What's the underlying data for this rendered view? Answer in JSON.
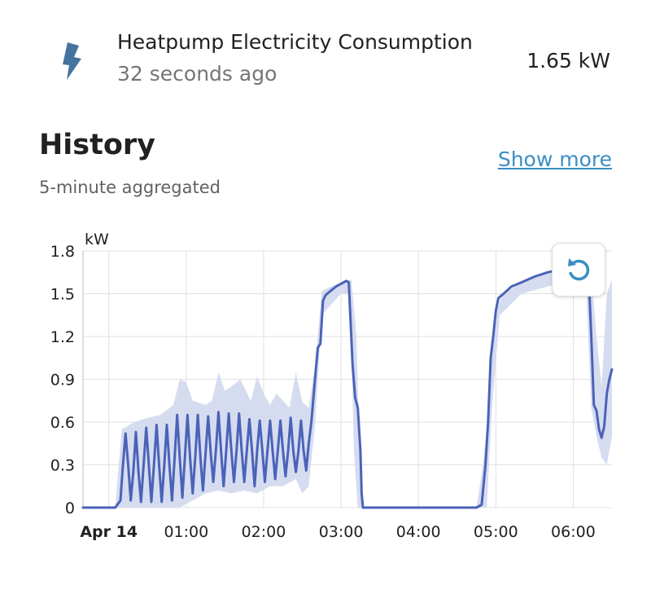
{
  "entity": {
    "name": "Heatpump Electricity Consumption",
    "updated": "32 seconds ago",
    "value": "1.65 kW",
    "icon": "lightning-bolt-icon",
    "icon_color": "#44739e"
  },
  "history": {
    "title": "History",
    "show_more": "Show more",
    "subtitle": "5-minute aggregated",
    "reset_icon": "reset-zoom-icon"
  },
  "colors": {
    "line": "#4a63b8",
    "band": "#d6dcf0",
    "accent": "#3b8fc4",
    "grid": "#e0e0e0"
  },
  "chart_data": {
    "type": "line",
    "unit_label": "kW",
    "ylim": [
      0,
      1.8
    ],
    "yticks": [
      0,
      0.3,
      0.6,
      0.9,
      1.2,
      1.5,
      1.8
    ],
    "xlim": [
      "23:40",
      "06:30"
    ],
    "xticks": [
      {
        "time": "00:00",
        "label": "Apr 14",
        "bold": true
      },
      {
        "time": "01:00",
        "label": "01:00",
        "bold": false
      },
      {
        "time": "02:00",
        "label": "02:00",
        "bold": false
      },
      {
        "time": "03:00",
        "label": "03:00",
        "bold": false
      },
      {
        "time": "04:00",
        "label": "04:00",
        "bold": false
      },
      {
        "time": "05:00",
        "label": "05:00",
        "bold": false
      },
      {
        "time": "06:00",
        "label": "06:00",
        "bold": false
      }
    ],
    "grid": true,
    "series": [
      {
        "points": [
          [
            "23:40",
            0
          ],
          [
            "00:05",
            0
          ],
          [
            "00:09",
            0.05
          ],
          [
            "00:11",
            0.3
          ],
          [
            "00:13",
            0.52
          ],
          [
            "00:15",
            0.3
          ],
          [
            "00:17",
            0.05
          ],
          [
            "00:19",
            0.25
          ],
          [
            "00:21",
            0.53
          ],
          [
            "00:23",
            0.25
          ],
          [
            "00:25",
            0.04
          ],
          [
            "00:27",
            0.3
          ],
          [
            "00:29",
            0.56
          ],
          [
            "00:31",
            0.3
          ],
          [
            "00:33",
            0.04
          ],
          [
            "00:35",
            0.3
          ],
          [
            "00:37",
            0.58
          ],
          [
            "00:39",
            0.3
          ],
          [
            "00:41",
            0.04
          ],
          [
            "00:43",
            0.3
          ],
          [
            "00:45",
            0.58
          ],
          [
            "00:47",
            0.3
          ],
          [
            "00:49",
            0.05
          ],
          [
            "00:51",
            0.35
          ],
          [
            "00:53",
            0.65
          ],
          [
            "00:55",
            0.35
          ],
          [
            "00:57",
            0.07
          ],
          [
            "00:59",
            0.35
          ],
          [
            "01:01",
            0.65
          ],
          [
            "01:03",
            0.35
          ],
          [
            "01:05",
            0.1
          ],
          [
            "01:07",
            0.35
          ],
          [
            "01:09",
            0.65
          ],
          [
            "01:11",
            0.35
          ],
          [
            "01:13",
            0.12
          ],
          [
            "01:15",
            0.38
          ],
          [
            "01:17",
            0.64
          ],
          [
            "01:19",
            0.38
          ],
          [
            "01:21",
            0.18
          ],
          [
            "01:23",
            0.4
          ],
          [
            "01:25",
            0.67
          ],
          [
            "01:27",
            0.4
          ],
          [
            "01:29",
            0.15
          ],
          [
            "01:31",
            0.4
          ],
          [
            "01:33",
            0.66
          ],
          [
            "01:35",
            0.4
          ],
          [
            "01:37",
            0.18
          ],
          [
            "01:39",
            0.4
          ],
          [
            "01:41",
            0.66
          ],
          [
            "01:43",
            0.4
          ],
          [
            "01:45",
            0.18
          ],
          [
            "01:47",
            0.4
          ],
          [
            "01:49",
            0.62
          ],
          [
            "01:51",
            0.4
          ],
          [
            "01:53",
            0.15
          ],
          [
            "01:55",
            0.4
          ],
          [
            "01:57",
            0.61
          ],
          [
            "01:59",
            0.4
          ],
          [
            "02:01",
            0.18
          ],
          [
            "02:03",
            0.4
          ],
          [
            "02:05",
            0.61
          ],
          [
            "02:07",
            0.4
          ],
          [
            "02:09",
            0.2
          ],
          [
            "02:11",
            0.4
          ],
          [
            "02:13",
            0.61
          ],
          [
            "02:15",
            0.4
          ],
          [
            "02:17",
            0.22
          ],
          [
            "02:19",
            0.4
          ],
          [
            "02:21",
            0.63
          ],
          [
            "02:23",
            0.4
          ],
          [
            "02:25",
            0.25
          ],
          [
            "02:27",
            0.4
          ],
          [
            "02:29",
            0.61
          ],
          [
            "02:31",
            0.4
          ],
          [
            "02:33",
            0.26
          ],
          [
            "02:35",
            0.45
          ],
          [
            "02:37",
            0.6
          ],
          [
            "02:40",
            0.92
          ],
          [
            "02:42",
            1.12
          ],
          [
            "02:44",
            1.15
          ],
          [
            "02:46",
            1.45
          ],
          [
            "02:48",
            1.49
          ],
          [
            "02:52",
            1.52
          ],
          [
            "02:56",
            1.55
          ],
          [
            "03:00",
            1.57
          ],
          [
            "03:04",
            1.59
          ],
          [
            "03:06",
            1.58
          ],
          [
            "03:09",
            1.0
          ],
          [
            "03:11",
            0.77
          ],
          [
            "03:13",
            0.7
          ],
          [
            "03:15",
            0.4
          ],
          [
            "03:16",
            0.1
          ],
          [
            "03:17",
            0
          ],
          [
            "04:45",
            0
          ],
          [
            "04:49",
            0.02
          ],
          [
            "04:52",
            0.3
          ],
          [
            "04:54",
            0.6
          ],
          [
            "04:56",
            1.05
          ],
          [
            "04:58",
            1.2
          ],
          [
            "05:00",
            1.38
          ],
          [
            "05:02",
            1.47
          ],
          [
            "05:06",
            1.5
          ],
          [
            "05:12",
            1.55
          ],
          [
            "05:20",
            1.58
          ],
          [
            "05:30",
            1.62
          ],
          [
            "05:40",
            1.65
          ],
          [
            "05:50",
            1.67
          ],
          [
            "06:00",
            1.68
          ],
          [
            "06:08",
            1.69
          ],
          [
            "06:12",
            1.62
          ],
          [
            "06:14",
            1.2
          ],
          [
            "06:16",
            0.72
          ],
          [
            "06:18",
            0.68
          ],
          [
            "06:20",
            0.55
          ],
          [
            "06:22",
            0.49
          ],
          [
            "06:24",
            0.57
          ],
          [
            "06:26",
            0.8
          ],
          [
            "06:28",
            0.9
          ],
          [
            "06:30",
            0.97
          ]
        ],
        "band_upper": [
          [
            "23:40",
            0
          ],
          [
            "00:05",
            0
          ],
          [
            "00:10",
            0.55
          ],
          [
            "00:20",
            0.6
          ],
          [
            "00:30",
            0.63
          ],
          [
            "00:40",
            0.65
          ],
          [
            "00:50",
            0.72
          ],
          [
            "00:55",
            0.9
          ],
          [
            "01:00",
            0.88
          ],
          [
            "01:05",
            0.75
          ],
          [
            "01:15",
            0.72
          ],
          [
            "01:20",
            0.75
          ],
          [
            "01:25",
            0.95
          ],
          [
            "01:30",
            0.82
          ],
          [
            "01:35",
            0.85
          ],
          [
            "01:42",
            0.9
          ],
          [
            "01:50",
            0.75
          ],
          [
            "01:55",
            0.92
          ],
          [
            "02:00",
            0.8
          ],
          [
            "02:05",
            0.72
          ],
          [
            "02:10",
            0.8
          ],
          [
            "02:15",
            0.75
          ],
          [
            "02:20",
            0.7
          ],
          [
            "02:25",
            0.95
          ],
          [
            "02:30",
            0.74
          ],
          [
            "02:35",
            0.7
          ],
          [
            "02:40",
            1.0
          ],
          [
            "02:45",
            1.52
          ],
          [
            "03:00",
            1.58
          ],
          [
            "03:08",
            1.6
          ],
          [
            "03:12",
            1.2
          ],
          [
            "03:14",
            0.5
          ],
          [
            "03:16",
            0
          ],
          [
            "04:45",
            0
          ],
          [
            "04:50",
            0.3
          ],
          [
            "04:54",
            0.65
          ],
          [
            "04:58",
            1.3
          ],
          [
            "05:05",
            1.5
          ],
          [
            "05:30",
            1.62
          ],
          [
            "06:00",
            1.69
          ],
          [
            "06:10",
            1.7
          ],
          [
            "06:14",
            1.65
          ],
          [
            "06:18",
            1.2
          ],
          [
            "06:22",
            0.85
          ],
          [
            "06:26",
            1.5
          ],
          [
            "06:30",
            1.6
          ]
        ],
        "band_lower": [
          [
            "23:40",
            0
          ],
          [
            "00:05",
            0
          ],
          [
            "00:10",
            0
          ],
          [
            "00:55",
            0
          ],
          [
            "01:05",
            0.05
          ],
          [
            "01:15",
            0.1
          ],
          [
            "01:25",
            0.12
          ],
          [
            "01:35",
            0.1
          ],
          [
            "01:45",
            0.12
          ],
          [
            "01:55",
            0.1
          ],
          [
            "02:05",
            0.15
          ],
          [
            "02:15",
            0.15
          ],
          [
            "02:25",
            0.2
          ],
          [
            "02:30",
            0.1
          ],
          [
            "02:35",
            0.15
          ],
          [
            "02:40",
            0.6
          ],
          [
            "02:45",
            1.35
          ],
          [
            "03:00",
            1.5
          ],
          [
            "03:07",
            1.5
          ],
          [
            "03:10",
            0.4
          ],
          [
            "03:13",
            0
          ],
          [
            "04:45",
            0
          ],
          [
            "04:53",
            0
          ],
          [
            "04:57",
            0.7
          ],
          [
            "05:03",
            1.35
          ],
          [
            "05:20",
            1.5
          ],
          [
            "06:00",
            1.6
          ],
          [
            "06:10",
            1.55
          ],
          [
            "06:14",
            0.7
          ],
          [
            "06:18",
            0.5
          ],
          [
            "06:22",
            0.35
          ],
          [
            "06:26",
            0.3
          ],
          [
            "06:30",
            0.5
          ]
        ]
      }
    ]
  }
}
